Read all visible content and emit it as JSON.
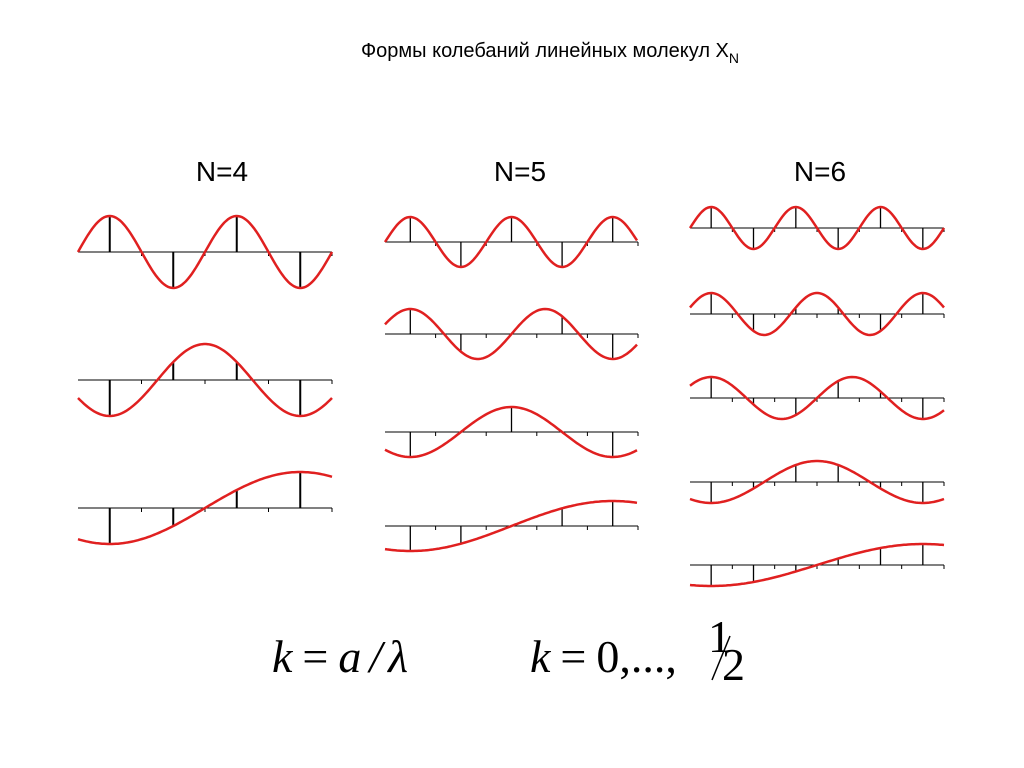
{
  "title": {
    "text": "Формы колебаний линейных молекул X",
    "subscript": "N"
  },
  "columns": [
    "N=4",
    "N=5",
    "N=6"
  ],
  "formula": {
    "left": [
      "k",
      "=",
      "a",
      "/",
      "λ"
    ],
    "right": [
      "k",
      "=",
      "0,...,"
    ],
    "fraction": {
      "numerator": "1",
      "denominator": "2"
    }
  }
}
